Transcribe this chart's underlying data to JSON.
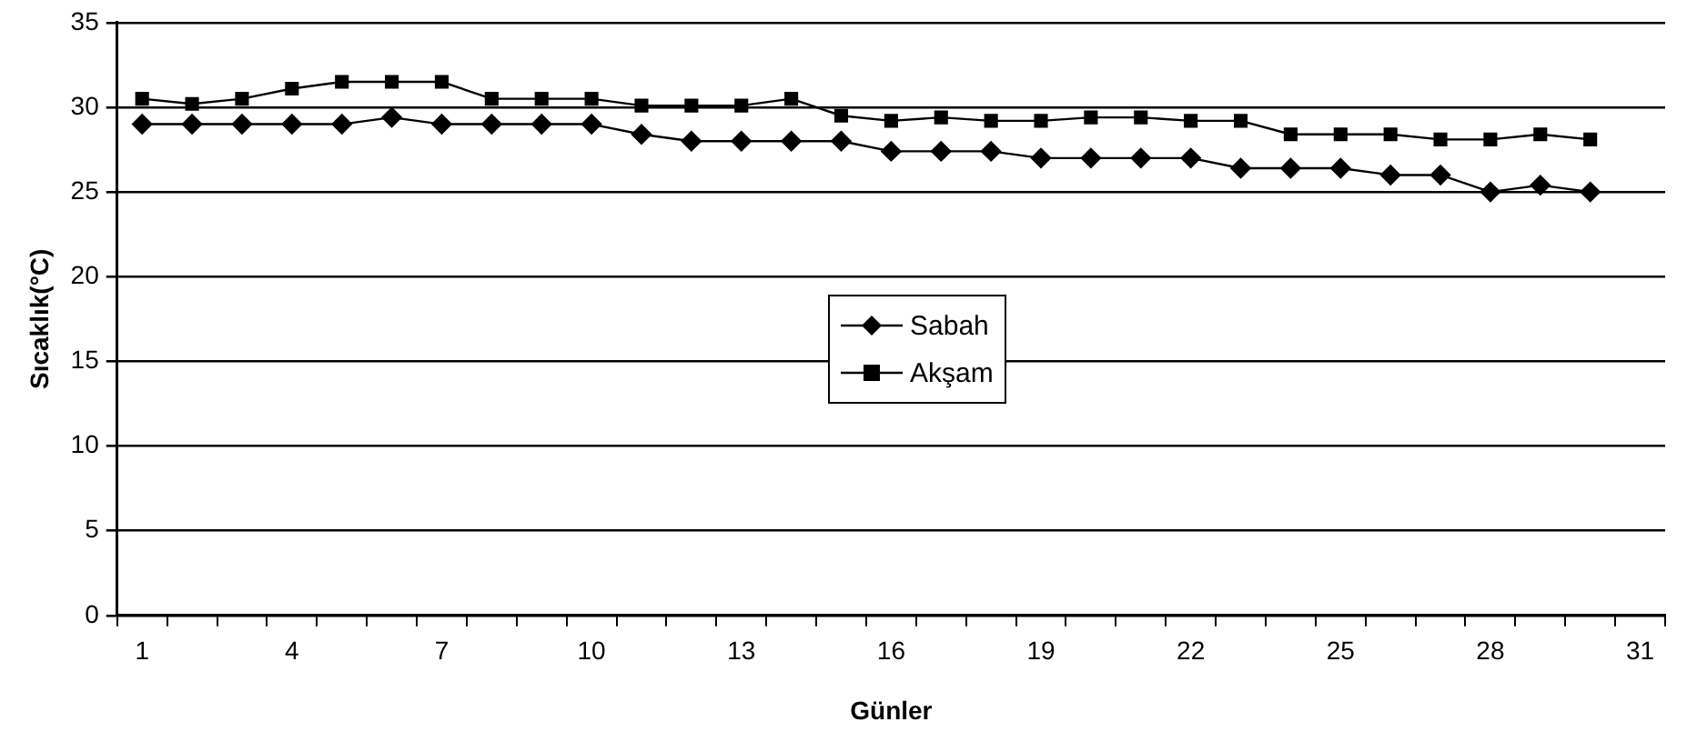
{
  "chart_data": {
    "type": "line",
    "xlabel": "Günler",
    "ylabel": "Sıcaklık(°C)",
    "categories": [
      "1",
      null,
      null,
      "4",
      null,
      null,
      "7",
      null,
      null,
      "10",
      null,
      null,
      "13",
      null,
      null,
      "16",
      null,
      null,
      "19",
      null,
      null,
      "22",
      null,
      null,
      "25",
      null,
      null,
      "28",
      null,
      null,
      "31"
    ],
    "series": [
      {
        "name": "Sabah",
        "color": "#000000",
        "marker": "diamond",
        "values": [
          29,
          29,
          29,
          29,
          29,
          29.4,
          29,
          29,
          29,
          29,
          28.4,
          28,
          28,
          28,
          28,
          27.4,
          27.4,
          27.4,
          27,
          27,
          27,
          27,
          26.4,
          26.4,
          26.4,
          26,
          26,
          25,
          25.4,
          25,
          null
        ]
      },
      {
        "name": "Akşam",
        "color": "#000000",
        "marker": "square",
        "values": [
          30.5,
          30.2,
          30.5,
          31.1,
          31.5,
          31.5,
          31.5,
          30.5,
          30.5,
          30.5,
          30.1,
          30.1,
          30.1,
          30.5,
          29.5,
          29.2,
          29.4,
          29.2,
          29.2,
          29.4,
          29.4,
          29.2,
          29.2,
          28.4,
          28.4,
          28.4,
          28.1,
          28.1,
          28.4,
          28.1,
          null
        ]
      }
    ],
    "ylim": [
      0,
      35
    ],
    "yticks": [
      0,
      5,
      10,
      15,
      20,
      25,
      30,
      35
    ],
    "grid": "y",
    "legend": "center"
  }
}
